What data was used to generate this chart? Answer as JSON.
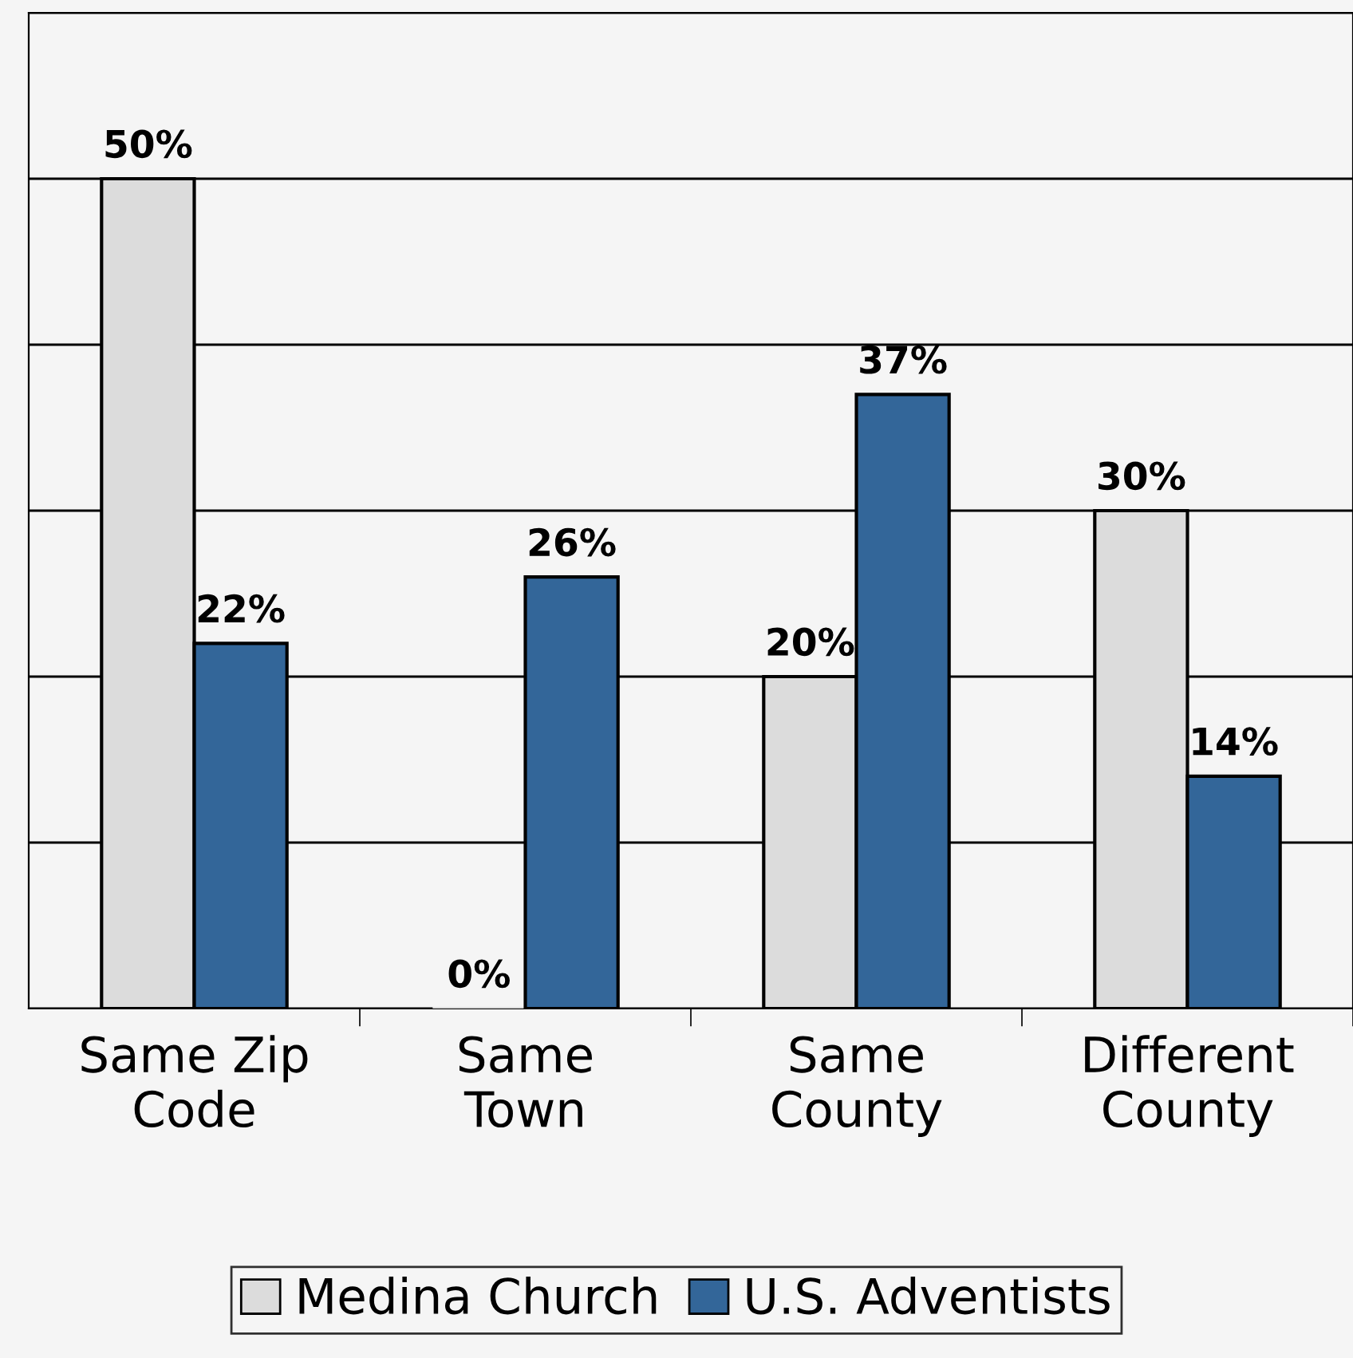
{
  "chart_data": {
    "type": "bar",
    "categories": [
      "Same Zip\nCode",
      "Same\nTown",
      "Same\nCounty",
      "Different\nCounty"
    ],
    "series": [
      {
        "name": "Medina Church",
        "color": "#dcdcdc",
        "values": [
          50,
          0,
          20,
          30
        ],
        "value_labels": [
          "50%",
          "0%",
          "20%",
          "30%"
        ]
      },
      {
        "name": "U.S. Adventists",
        "color": "#336699",
        "values": [
          22,
          26,
          37,
          14
        ],
        "value_labels": [
          "22%",
          "26%",
          "37%",
          "14%"
        ]
      }
    ],
    "grid": "y",
    "legend": "bottom",
    "tick_labels": "x"
  }
}
